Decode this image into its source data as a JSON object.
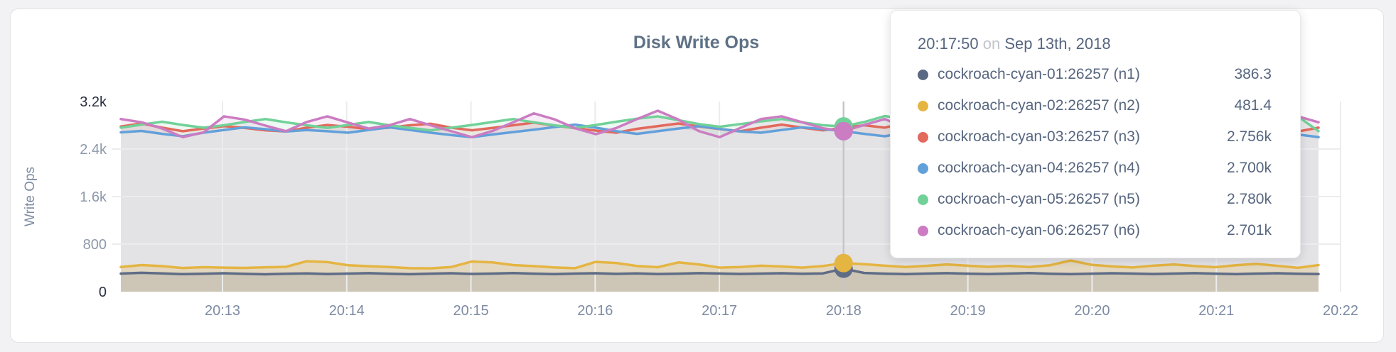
{
  "page": {
    "background": "#f2f2f4",
    "card_background": "#ffffff"
  },
  "chart_data": {
    "type": "line",
    "title": "Disk Write Ops",
    "ylabel": "Write Ops",
    "xlabel": "",
    "ylim": [
      0,
      3200
    ],
    "grid": true,
    "x_tick_labels": [
      "20:13",
      "20:14",
      "20:15",
      "20:16",
      "20:17",
      "20:18",
      "20:19",
      "20:20",
      "20:21",
      "20:22"
    ],
    "y_tick_labels": [
      "0",
      "800",
      "1.6k",
      "2.4k",
      "3.2k"
    ],
    "y_tick_values": [
      0,
      800,
      1600,
      2400,
      3200
    ],
    "colors": {
      "grid": "#ececee",
      "crosshair": "#c4c6ca",
      "base_area": "#e3e3e6",
      "axis_text": "#7e8ba3",
      "axis_text_minmax": "#2a3040"
    },
    "series": [
      {
        "name": "cockroach-cyan-01:26257 (n1)",
        "color": "#5f6c86",
        "values": [
          305,
          318,
          308,
          295,
          302,
          310,
          300,
          293,
          301,
          308,
          297,
          304,
          312,
          302,
          294,
          303,
          310,
          299,
          305,
          314,
          303,
          295,
          304,
          311,
          300,
          307,
          297,
          303,
          312,
          306,
          298,
          304,
          310,
          301,
          308,
          386.3,
          315,
          303,
          296,
          304,
          312,
          303,
          297,
          305,
          313,
          302,
          296,
          303,
          311,
          304,
          297,
          305,
          312,
          303,
          296,
          304,
          311,
          302,
          297
        ]
      },
      {
        "name": "cockroach-cyan-02:26257 (n2)",
        "color": "#e5b542",
        "values": [
          415,
          448,
          430,
          398,
          412,
          405,
          400,
          410,
          418,
          512,
          498,
          445,
          428,
          415,
          396,
          392,
          415,
          508,
          492,
          448,
          430,
          408,
          396,
          502,
          482,
          432,
          412,
          492,
          458,
          405,
          415,
          438,
          424,
          405,
          432,
          481.4,
          462,
          438,
          415,
          435,
          458,
          438,
          418,
          435,
          415,
          445,
          525,
          452,
          425,
          408,
          438,
          458,
          432,
          412,
          445,
          468,
          435,
          402,
          448
        ]
      },
      {
        "name": "cockroach-cyan-03:26257 (n3)",
        "color": "#e2695c",
        "values": [
          2780,
          2830,
          2760,
          2700,
          2745,
          2785,
          2755,
          2715,
          2695,
          2760,
          2805,
          2775,
          2735,
          2760,
          2800,
          2825,
          2760,
          2715,
          2755,
          2800,
          2845,
          2795,
          2750,
          2710,
          2675,
          2740,
          2785,
          2830,
          2780,
          2735,
          2700,
          2760,
          2810,
          2760,
          2715,
          2756.3,
          2800,
          2760,
          2845,
          2790,
          2745,
          2800,
          2755,
          2710,
          2760,
          2805,
          2850,
          2800,
          2755,
          2895,
          2840,
          2775,
          2735,
          2780,
          2825,
          2775,
          2735,
          2695,
          2760
        ]
      },
      {
        "name": "cockroach-cyan-04:26257 (n4)",
        "color": "#62a0da",
        "values": [
          2680,
          2705,
          2655,
          2615,
          2675,
          2720,
          2765,
          2735,
          2695,
          2720,
          2700,
          2675,
          2720,
          2765,
          2720,
          2675,
          2635,
          2600,
          2645,
          2685,
          2725,
          2770,
          2810,
          2760,
          2700,
          2655,
          2700,
          2745,
          2785,
          2740,
          2695,
          2675,
          2720,
          2765,
          2735,
          2700.4,
          2655,
          2615,
          2680,
          2725,
          2680,
          2705,
          2745,
          2700,
          2655,
          2705,
          2745,
          2790,
          2830,
          2780,
          2735,
          2695,
          2655,
          2700,
          2745,
          2805,
          2760,
          2645,
          2600
        ]
      },
      {
        "name": "cockroach-cyan-05:26257 (n5)",
        "color": "#71d198",
        "values": [
          2760,
          2810,
          2860,
          2805,
          2760,
          2800,
          2855,
          2905,
          2850,
          2800,
          2755,
          2805,
          2855,
          2800,
          2755,
          2715,
          2760,
          2805,
          2855,
          2905,
          2850,
          2800,
          2755,
          2805,
          2860,
          2910,
          2950,
          2885,
          2820,
          2775,
          2820,
          2865,
          2905,
          2850,
          2800,
          2780.4,
          2855,
          2955,
          2900,
          2845,
          2795,
          2755,
          2805,
          2855,
          2800,
          2755,
          2805,
          2865,
          2820,
          2775,
          2820,
          2865,
          2905,
          2850,
          2795,
          2750,
          2805,
          2950,
          2700
        ]
      },
      {
        "name": "cockroach-cyan-06:26257 (n6)",
        "color": "#cb7cc2",
        "values": [
          2905,
          2850,
          2745,
          2600,
          2680,
          2950,
          2895,
          2795,
          2700,
          2855,
          2950,
          2845,
          2745,
          2800,
          2905,
          2800,
          2700,
          2600,
          2705,
          2850,
          3000,
          2900,
          2750,
          2650,
          2755,
          2905,
          3045,
          2895,
          2700,
          2600,
          2755,
          2905,
          2950,
          2850,
          2750,
          2700.7,
          2805,
          2905,
          2750,
          2650,
          2805,
          2950,
          2850,
          2700,
          2600,
          2755,
          2905,
          3000,
          2895,
          2750,
          2855,
          2950,
          2850,
          2750,
          2650,
          2755,
          2905,
          2950,
          2850
        ]
      }
    ],
    "hover": {
      "index": 35,
      "time": "20:17:50",
      "on_word": "on",
      "date": "Sep 13th, 2018",
      "rows": [
        {
          "label": "cockroach-cyan-01:26257 (n1)",
          "value": "386.3",
          "color": "#5a6884"
        },
        {
          "label": "cockroach-cyan-02:26257 (n2)",
          "value": "481.4",
          "color": "#e5b542"
        },
        {
          "label": "cockroach-cyan-03:26257 (n3)",
          "value": "2.756k",
          "color": "#e2695c"
        },
        {
          "label": "cockroach-cyan-04:26257 (n4)",
          "value": "2.700k",
          "color": "#62a0da"
        },
        {
          "label": "cockroach-cyan-05:26257 (n5)",
          "value": "2.780k",
          "color": "#71d198"
        },
        {
          "label": "cockroach-cyan-06:26257 (n6)",
          "value": "2.701k",
          "color": "#cb7cc2"
        }
      ]
    }
  }
}
